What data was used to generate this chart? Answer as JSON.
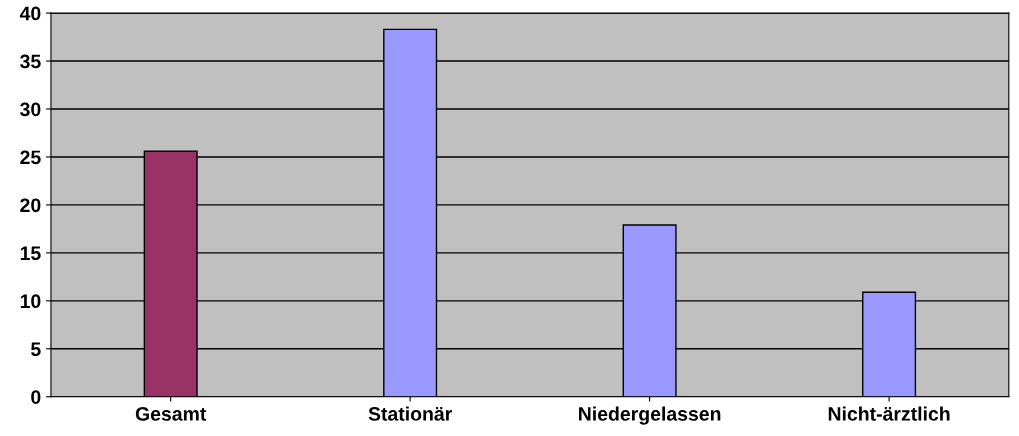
{
  "chart_data": {
    "type": "bar",
    "categories": [
      "Gesamt",
      "Stationär",
      "Niedergelassen",
      "Nicht-ärztlich"
    ],
    "values": [
      25.6,
      38.3,
      17.9,
      10.9
    ],
    "colors": [
      "#993366",
      "#9999ff",
      "#9999ff",
      "#9999ff"
    ],
    "ylim": [
      0,
      40
    ],
    "yticks": [
      0,
      5,
      10,
      15,
      20,
      25,
      30,
      35,
      40
    ],
    "grid": "y"
  }
}
